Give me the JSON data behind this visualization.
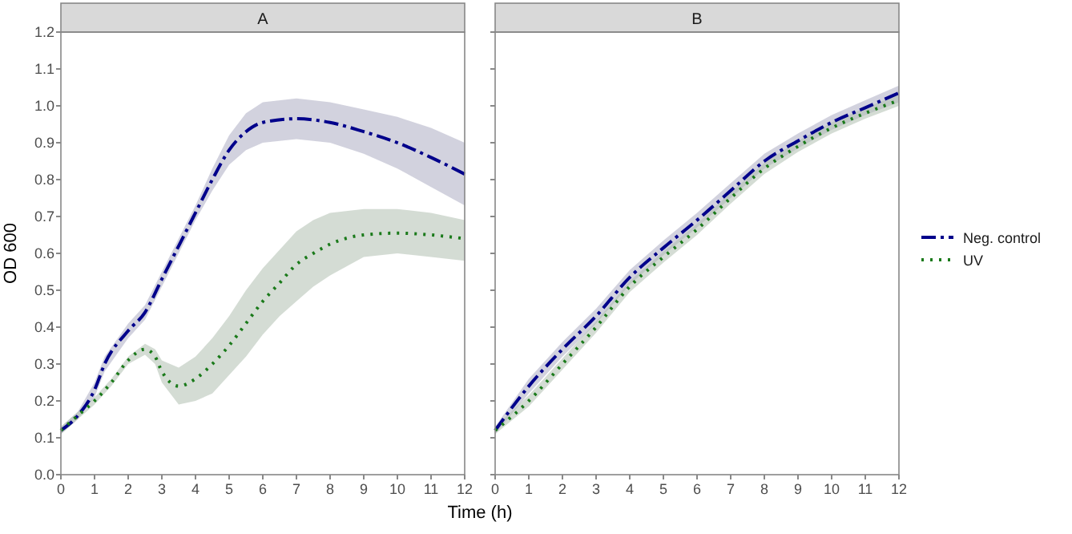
{
  "chart_data": [
    {
      "type": "line",
      "title": "A",
      "xlabel": "Time (h)",
      "ylabel": "OD 600",
      "xlim": [
        0,
        12
      ],
      "ylim": [
        0,
        1.2
      ],
      "xticks": [
        0,
        1,
        2,
        3,
        4,
        5,
        6,
        7,
        8,
        9,
        10,
        11,
        12
      ],
      "yticks": [
        {
          "value": 0,
          "label": "0.0"
        },
        0.1,
        0.2,
        0.3,
        0.4,
        0.5,
        0.6,
        0.7,
        0.8,
        0.9,
        {
          "value": 1,
          "label": "1.0"
        },
        1.1,
        1.2
      ],
      "grid": false,
      "legend": false,
      "series": [
        {
          "color": "#00008b",
          "line_style": "dashed",
          "x": [
            0,
            0.5,
            1,
            1.3,
            2,
            2.5,
            3,
            3.5,
            4,
            4.5,
            5,
            5.5,
            6,
            7,
            8,
            9,
            10,
            11,
            12
          ],
          "values": [
            0.12,
            0.16,
            0.23,
            0.3,
            0.39,
            0.44,
            0.53,
            0.62,
            0.71,
            0.8,
            0.88,
            0.93,
            0.955,
            0.965,
            0.955,
            0.93,
            0.9,
            0.86,
            0.815
          ],
          "lower": [
            0.11,
            0.15,
            0.21,
            0.28,
            0.37,
            0.42,
            0.51,
            0.6,
            0.69,
            0.77,
            0.84,
            0.88,
            0.9,
            0.91,
            0.9,
            0.87,
            0.83,
            0.78,
            0.73
          ],
          "upper": [
            0.13,
            0.17,
            0.25,
            0.32,
            0.41,
            0.46,
            0.55,
            0.64,
            0.73,
            0.83,
            0.92,
            0.98,
            1.01,
            1.02,
            1.01,
            0.99,
            0.97,
            0.94,
            0.9
          ]
        },
        {
          "color": "#1a7a1a",
          "line_style": "dotted",
          "x": [
            0,
            0.5,
            1,
            1.5,
            2,
            2.5,
            2.8,
            3,
            3.5,
            4,
            4.5,
            5,
            5.5,
            6,
            6.5,
            7,
            7.5,
            8,
            9,
            10,
            11,
            12
          ],
          "values": [
            0.12,
            0.16,
            0.2,
            0.25,
            0.31,
            0.34,
            0.32,
            0.28,
            0.24,
            0.26,
            0.3,
            0.35,
            0.41,
            0.47,
            0.52,
            0.57,
            0.6,
            0.625,
            0.65,
            0.655,
            0.65,
            0.64
          ],
          "lower": [
            0.11,
            0.15,
            0.19,
            0.24,
            0.3,
            0.325,
            0.3,
            0.25,
            0.19,
            0.2,
            0.22,
            0.27,
            0.32,
            0.38,
            0.43,
            0.47,
            0.51,
            0.54,
            0.59,
            0.6,
            0.59,
            0.58
          ],
          "upper": [
            0.13,
            0.17,
            0.21,
            0.26,
            0.32,
            0.355,
            0.34,
            0.31,
            0.29,
            0.32,
            0.37,
            0.43,
            0.5,
            0.56,
            0.61,
            0.66,
            0.69,
            0.71,
            0.72,
            0.72,
            0.71,
            0.69
          ]
        }
      ]
    },
    {
      "type": "line",
      "title": "B",
      "xlim": [
        0,
        12
      ],
      "ylim": [
        0,
        1.2
      ],
      "xticks": [
        0,
        1,
        2,
        3,
        4,
        5,
        6,
        7,
        8,
        9,
        10,
        11,
        12
      ],
      "yticks": [
        0,
        0.1,
        0.2,
        0.3,
        0.4,
        0.5,
        0.6,
        0.7,
        0.8,
        0.9,
        1,
        1.1,
        1.2
      ],
      "tick_labels": "x",
      "grid": false,
      "legend": "right",
      "series": [
        {
          "name": "Neg. control",
          "color": "#00008b",
          "line_style": "dashed",
          "x": [
            0,
            1,
            2,
            3,
            4,
            5,
            6,
            7,
            8,
            9,
            10,
            11,
            12
          ],
          "values": [
            0.12,
            0.24,
            0.34,
            0.43,
            0.535,
            0.615,
            0.69,
            0.77,
            0.85,
            0.905,
            0.955,
            0.995,
            1.035
          ],
          "lower": [
            0.11,
            0.22,
            0.32,
            0.41,
            0.515,
            0.595,
            0.67,
            0.75,
            0.83,
            0.885,
            0.935,
            0.975,
            1.01
          ],
          "upper": [
            0.13,
            0.26,
            0.36,
            0.45,
            0.555,
            0.635,
            0.71,
            0.79,
            0.87,
            0.925,
            0.975,
            1.015,
            1.055
          ]
        },
        {
          "name": "UV",
          "color": "#1a7a1a",
          "line_style": "dotted",
          "x": [
            0,
            1,
            2,
            3,
            4,
            5,
            6,
            7,
            8,
            9,
            10,
            11,
            12
          ],
          "values": [
            0.12,
            0.2,
            0.3,
            0.4,
            0.51,
            0.59,
            0.665,
            0.75,
            0.83,
            0.89,
            0.94,
            0.98,
            1.015
          ],
          "lower": [
            0.11,
            0.185,
            0.285,
            0.385,
            0.495,
            0.575,
            0.65,
            0.735,
            0.815,
            0.875,
            0.925,
            0.965,
            1.0
          ],
          "upper": [
            0.13,
            0.215,
            0.315,
            0.415,
            0.525,
            0.605,
            0.68,
            0.765,
            0.845,
            0.905,
            0.955,
            0.995,
            1.03
          ]
        }
      ]
    }
  ]
}
